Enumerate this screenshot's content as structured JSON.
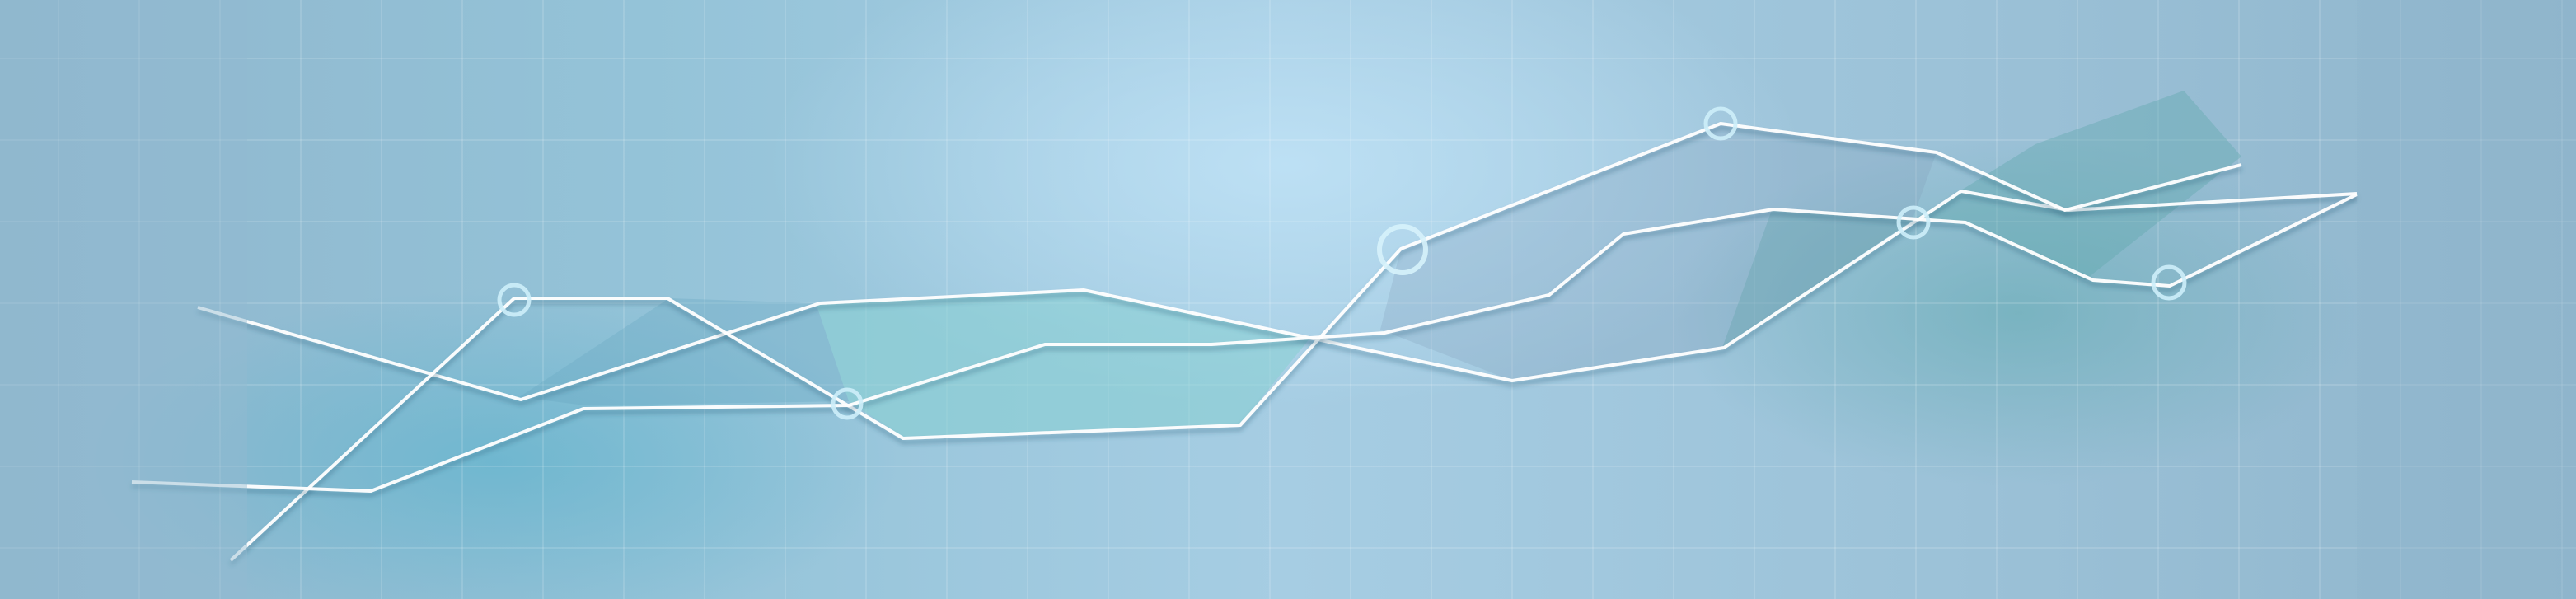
{
  "banner": {
    "style": "abstract line graph background",
    "colors": {
      "base": "#9cc4da",
      "line": "#ffffff",
      "ring": "#c8ecf8",
      "fill_teal": "#7cc6cc",
      "fill_dark": "#6e9fb6"
    }
  }
}
